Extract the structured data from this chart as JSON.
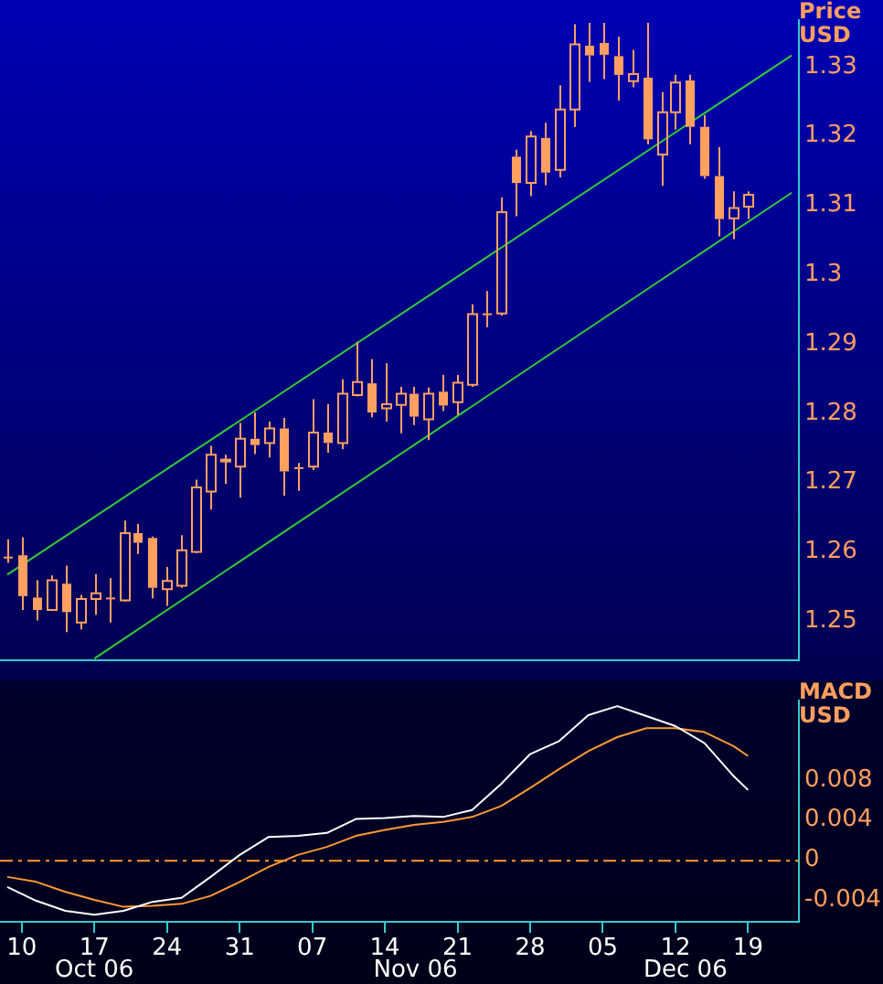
{
  "chart_data": [
    {
      "type": "candlestick",
      "ylabel": "Price USD",
      "color": "#ffa060",
      "categories": [
        null,
        "10",
        null,
        null,
        null,
        null,
        "17",
        null,
        null,
        null,
        null,
        "24",
        null,
        null,
        null,
        null,
        "31",
        null,
        null,
        null,
        null,
        "07",
        null,
        null,
        null,
        null,
        "14",
        null,
        null,
        null,
        null,
        "21",
        null,
        null,
        null,
        null,
        "28",
        null,
        null,
        null,
        null,
        "05",
        null,
        null,
        null,
        null,
        "12",
        null,
        null,
        null,
        null,
        "19",
        null,
        null,
        null
      ],
      "ohlc": [
        [
          1.2593,
          1.2618,
          1.2584,
          1.2592
        ],
        [
          1.2595,
          1.2621,
          1.2516,
          1.2536
        ],
        [
          1.2534,
          1.2559,
          1.2501,
          1.2516
        ],
        [
          1.2516,
          1.2566,
          1.2516,
          1.2559
        ],
        [
          1.2554,
          1.258,
          1.2484,
          1.2513
        ],
        [
          1.2498,
          1.2538,
          1.2488,
          1.2532
        ],
        [
          1.2532,
          1.2568,
          1.2509,
          1.254
        ],
        [
          1.2534,
          1.2562,
          1.2498,
          1.2533
        ],
        [
          1.253,
          1.2645,
          1.2528,
          1.2627
        ],
        [
          1.2627,
          1.264,
          1.2597,
          1.2613
        ],
        [
          1.262,
          1.2622,
          1.2533,
          1.2548
        ],
        [
          1.2546,
          1.2578,
          1.2522,
          1.2558
        ],
        [
          1.2551,
          1.2624,
          1.2548,
          1.2602
        ],
        [
          1.26,
          1.2704,
          1.2598,
          1.2693
        ],
        [
          1.2687,
          1.2753,
          1.2661,
          1.274
        ],
        [
          1.2731,
          1.274,
          1.2698,
          1.2733
        ],
        [
          1.2723,
          1.2786,
          1.2678,
          1.2763
        ],
        [
          1.2763,
          1.2801,
          1.2741,
          1.2754
        ],
        [
          1.2757,
          1.2788,
          1.2736,
          1.2778
        ],
        [
          1.2778,
          1.2793,
          1.2681,
          1.2716
        ],
        [
          1.2722,
          1.2728,
          1.2688,
          1.272
        ],
        [
          1.2723,
          1.282,
          1.2718,
          1.2772
        ],
        [
          1.2772,
          1.2813,
          1.2743,
          1.2757
        ],
        [
          1.2757,
          1.2849,
          1.2748,
          1.2828
        ],
        [
          1.2826,
          1.2903,
          1.2824,
          1.2845
        ],
        [
          1.2843,
          1.2878,
          1.2794,
          1.2801
        ],
        [
          1.2807,
          1.2872,
          1.2788,
          1.2813
        ],
        [
          1.2812,
          1.2838,
          1.2771,
          1.2828
        ],
        [
          1.2828,
          1.2838,
          1.2783,
          1.2795
        ],
        [
          1.2791,
          1.2837,
          1.2761,
          1.2828
        ],
        [
          1.2831,
          1.2855,
          1.2803,
          1.2811
        ],
        [
          1.2816,
          1.2855,
          1.2797,
          1.2844
        ],
        [
          1.2841,
          1.2957,
          1.2838,
          1.2943
        ],
        [
          1.2944,
          1.2976,
          1.2924,
          1.2943
        ],
        [
          1.2944,
          1.3111,
          1.2941,
          1.309
        ],
        [
          1.317,
          1.318,
          1.3084,
          1.3132
        ],
        [
          1.3132,
          1.3207,
          1.3113,
          1.3199
        ],
        [
          1.3197,
          1.3219,
          1.3129,
          1.3147
        ],
        [
          1.3151,
          1.3273,
          1.314,
          1.3238
        ],
        [
          1.3238,
          1.3361,
          1.3213,
          1.3332
        ],
        [
          1.333,
          1.3363,
          1.3278,
          1.3316
        ],
        [
          1.3334,
          1.3363,
          1.3282,
          1.3317
        ],
        [
          1.3315,
          1.3343,
          1.3251,
          1.3288
        ],
        [
          1.3279,
          1.3324,
          1.327,
          1.3289
        ],
        [
          1.3284,
          1.3363,
          1.3188,
          1.3195
        ],
        [
          1.3173,
          1.3263,
          1.3128,
          1.3234
        ],
        [
          1.3234,
          1.3288,
          1.3209,
          1.3277
        ],
        [
          1.328,
          1.3288,
          1.3188,
          1.3213
        ],
        [
          1.3213,
          1.323,
          1.3138,
          1.3142
        ],
        [
          1.3142,
          1.3184,
          1.3055,
          1.308
        ],
        [
          1.3081,
          1.312,
          1.3051,
          1.3096
        ],
        [
          1.3098,
          1.312,
          1.308,
          1.3115
        ],
        null,
        null,
        null
      ],
      "series": [
        {
          "type": "line",
          "color": "#33cc33",
          "values": [
            1.2567,
            null,
            null,
            null,
            null,
            null,
            null,
            null,
            null,
            null,
            null,
            null,
            null,
            null,
            null,
            null,
            null,
            null,
            null,
            null,
            null,
            null,
            null,
            null,
            null,
            null,
            null,
            null,
            null,
            null,
            null,
            null,
            null,
            null,
            null,
            null,
            null,
            null,
            null,
            null,
            null,
            null,
            null,
            null,
            null,
            null,
            null,
            null,
            null,
            null,
            null,
            null,
            null,
            null,
            1.3316
          ]
        },
        {
          "type": "line",
          "color": "#33cc33",
          "values": [
            null,
            null,
            null,
            null,
            null,
            null,
            1.2446,
            null,
            null,
            null,
            null,
            null,
            null,
            null,
            null,
            null,
            null,
            null,
            null,
            null,
            null,
            null,
            null,
            null,
            null,
            null,
            null,
            null,
            null,
            null,
            null,
            null,
            null,
            null,
            null,
            null,
            null,
            null,
            null,
            null,
            null,
            null,
            null,
            null,
            null,
            null,
            null,
            null,
            null,
            null,
            null,
            null,
            null,
            null,
            1.3118
          ]
        }
      ],
      "ylim": [
        1.2443,
        1.33675
      ],
      "yticks": [
        1.25,
        1.26,
        1.27,
        1.28,
        1.29,
        1.3,
        1.31,
        1.32,
        1.33
      ],
      "tick_labels": "y",
      "marker": "none"
    },
    {
      "type": "line",
      "ylabel": "MACD USD",
      "categories": [
        null,
        "10",
        null,
        null,
        null,
        null,
        "17",
        null,
        null,
        null,
        null,
        "24",
        null,
        null,
        null,
        null,
        "31",
        null,
        null,
        null,
        null,
        "07",
        null,
        null,
        null,
        null,
        "14",
        null,
        null,
        null,
        null,
        "21",
        null,
        null,
        null,
        null,
        "28",
        null,
        null,
        null,
        null,
        "05",
        null,
        null,
        null,
        null,
        "12",
        null,
        null,
        null,
        null,
        "19",
        null,
        null,
        null
      ],
      "series": [
        {
          "color": "#ffffff",
          "values": [
            -0.0027,
            null,
            -0.0041,
            null,
            -0.0051,
            null,
            -0.0055,
            null,
            -0.0051,
            null,
            -0.0042,
            null,
            -0.0038,
            null,
            -0.0017,
            null,
            0.0005,
            null,
            0.0023,
            null,
            0.0024,
            null,
            0.0027,
            null,
            0.0041,
            null,
            0.0042,
            null,
            0.0044,
            null,
            0.0043,
            null,
            0.005,
            null,
            0.0076,
            null,
            0.0106,
            null,
            0.0119,
            null,
            0.0145,
            null,
            0.0154,
            null,
            0.0144,
            null,
            0.0134,
            null,
            0.0117,
            null,
            0.0084,
            0.007,
            null,
            null,
            null
          ]
        },
        {
          "color": "#ff9933",
          "values": [
            -0.0017,
            null,
            -0.0022,
            null,
            -0.0032,
            null,
            -0.004,
            null,
            -0.0047,
            null,
            -0.0046,
            null,
            -0.0044,
            null,
            -0.0036,
            null,
            -0.0022,
            null,
            -0.0007,
            null,
            0.0005,
            null,
            0.0013,
            null,
            0.0024,
            null,
            0.003,
            null,
            0.0035,
            null,
            0.0038,
            null,
            0.0043,
            null,
            0.0054,
            null,
            0.0072,
            null,
            0.0091,
            null,
            0.0109,
            null,
            0.0123,
            null,
            0.0132,
            null,
            0.0132,
            null,
            0.0128,
            null,
            0.0114,
            0.0104,
            null,
            null,
            null
          ]
        }
      ],
      "ylim": [
        -0.0062,
        0.016
      ],
      "yticks": [
        -0.004,
        0,
        0.004,
        0.008
      ],
      "marker": "none",
      "ref_lines": [
        {
          "axis": "y",
          "value": 0,
          "color": "#ff9933",
          "line_style": "dashed"
        }
      ],
      "annotations": [
        "Oct 06",
        "Nov 06",
        "Dec 06"
      ]
    }
  ]
}
